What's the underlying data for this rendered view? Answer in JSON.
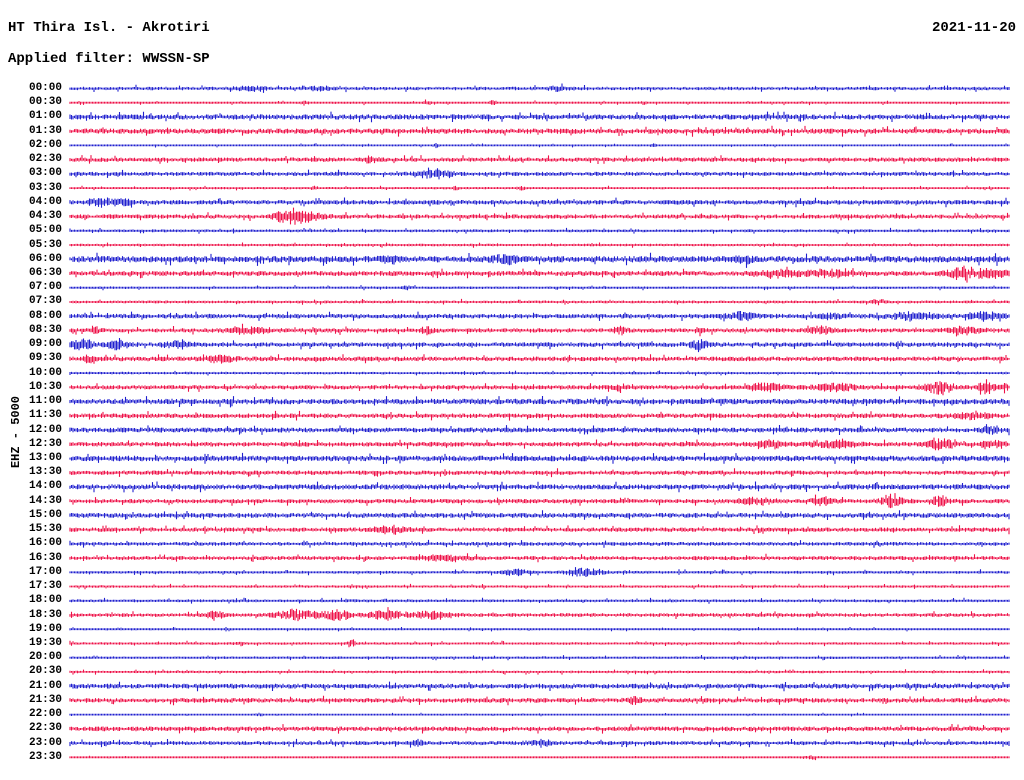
{
  "header": {
    "station_title": "HT Thira Isl. - Akrotiri",
    "date": "2021-11-20",
    "filter_line": "Applied filter: WWSSN-SP",
    "scale_label": "EHZ - 5000"
  },
  "colors": {
    "trace_blue": "#2020cf",
    "trace_red": "#ee1148",
    "text": "#000000",
    "background": "#ffffff"
  },
  "chart_data": {
    "type": "line",
    "subtype": "helicorder-daily-seismogram",
    "title": "HT Thira Isl. - Akrotiri",
    "date": "2021-11-20",
    "filter": "WWSSN-SP",
    "ylabel": "EHZ - 5000",
    "row_interval_minutes": 30,
    "x_range_minutes": [
      0,
      30
    ],
    "legend_position": "none",
    "grid": false,
    "color_rule": "rows starting on the hour are blue, half-hour rows are red",
    "events_format": "each event = [position_fraction_along_row, peak_half_amplitude_px, width_px]",
    "rows": [
      {
        "label": "00:00",
        "color": "blue",
        "noise": 1.2,
        "events": [
          [
            0.19,
            2.2,
            25
          ],
          [
            0.266,
            2.0,
            18
          ],
          [
            0.52,
            2.0,
            18
          ]
        ]
      },
      {
        "label": "00:30",
        "color": "red",
        "noise": 0.8,
        "events": [
          [
            0.25,
            2.0,
            6
          ],
          [
            0.38,
            2.0,
            6
          ],
          [
            0.45,
            2.0,
            6
          ],
          [
            0.61,
            2.0,
            6
          ]
        ]
      },
      {
        "label": "01:00",
        "color": "blue",
        "noise": 1.8,
        "events": []
      },
      {
        "label": "01:30",
        "color": "red",
        "noise": 1.8,
        "events": []
      },
      {
        "label": "02:00",
        "color": "blue",
        "noise": 0.7,
        "events": [
          [
            0.39,
            2.0,
            5
          ],
          [
            0.62,
            2.0,
            5
          ]
        ]
      },
      {
        "label": "02:30",
        "color": "red",
        "noise": 1.5,
        "events": [
          [
            0.319,
            2.5,
            15
          ]
        ]
      },
      {
        "label": "03:00",
        "color": "blue",
        "noise": 1.4,
        "events": [
          [
            0.388,
            5.0,
            26
          ]
        ]
      },
      {
        "label": "03:30",
        "color": "red",
        "noise": 0.8,
        "events": [
          [
            0.26,
            2.0,
            6
          ],
          [
            0.41,
            2.0,
            6
          ],
          [
            0.48,
            2.0,
            6
          ]
        ]
      },
      {
        "label": "04:00",
        "color": "blue",
        "noise": 1.6,
        "events": [
          [
            0.032,
            3.8,
            20
          ],
          [
            0.058,
            3.0,
            14
          ]
        ]
      },
      {
        "label": "04:30",
        "color": "red",
        "noise": 1.5,
        "events": [
          [
            0.234,
            8.0,
            22
          ],
          [
            0.255,
            3.5,
            26
          ]
        ]
      },
      {
        "label": "05:00",
        "color": "blue",
        "noise": 1.0,
        "events": []
      },
      {
        "label": "05:30",
        "color": "red",
        "noise": 0.9,
        "events": []
      },
      {
        "label": "06:00",
        "color": "blue",
        "noise": 2.2,
        "events": [
          [
            0.34,
            3.0,
            15
          ],
          [
            0.463,
            3.5,
            20
          ],
          [
            0.718,
            3.0,
            12
          ]
        ]
      },
      {
        "label": "06:30",
        "color": "red",
        "noise": 1.7,
        "events": [
          [
            0.755,
            3.5,
            28
          ],
          [
            0.808,
            3.0,
            36
          ],
          [
            0.952,
            7.0,
            24
          ],
          [
            0.984,
            4.5,
            26
          ]
        ]
      },
      {
        "label": "07:00",
        "color": "blue",
        "noise": 0.9,
        "events": [
          [
            0.36,
            2.5,
            8
          ]
        ]
      },
      {
        "label": "07:30",
        "color": "red",
        "noise": 1.0,
        "events": [
          [
            0.86,
            2.5,
            10
          ]
        ]
      },
      {
        "label": "08:00",
        "color": "blue",
        "noise": 1.6,
        "events": [
          [
            0.715,
            3.5,
            22
          ],
          [
            0.808,
            3.0,
            16
          ],
          [
            0.896,
            3.5,
            36
          ],
          [
            0.974,
            3.5,
            26
          ]
        ]
      },
      {
        "label": "08:30",
        "color": "red",
        "noise": 1.5,
        "events": [
          [
            0.027,
            3.0,
            9
          ],
          [
            0.19,
            3.5,
            32
          ],
          [
            0.38,
            3.0,
            11
          ],
          [
            0.585,
            3.0,
            11
          ],
          [
            0.67,
            3.0,
            9
          ],
          [
            0.8,
            4.5,
            18
          ],
          [
            0.95,
            3.5,
            28
          ]
        ]
      },
      {
        "label": "09:00",
        "color": "blue",
        "noise": 1.6,
        "events": [
          [
            0.012,
            5.5,
            18
          ],
          [
            0.05,
            5.0,
            16
          ],
          [
            0.115,
            4.0,
            20
          ],
          [
            0.67,
            4.0,
            15
          ]
        ]
      },
      {
        "label": "09:30",
        "color": "red",
        "noise": 1.6,
        "events": [
          [
            0.02,
            3.0,
            9
          ],
          [
            0.16,
            3.5,
            22
          ]
        ]
      },
      {
        "label": "10:00",
        "color": "blue",
        "noise": 0.9,
        "events": []
      },
      {
        "label": "10:30",
        "color": "red",
        "noise": 1.5,
        "events": [
          [
            0.585,
            3.0,
            11
          ],
          [
            0.74,
            4.0,
            26
          ],
          [
            0.815,
            3.5,
            36
          ],
          [
            0.925,
            6.5,
            22
          ],
          [
            0.975,
            5.5,
            12
          ],
          [
            0.995,
            4.0,
            9
          ]
        ]
      },
      {
        "label": "11:00",
        "color": "blue",
        "noise": 1.9,
        "events": []
      },
      {
        "label": "11:30",
        "color": "red",
        "noise": 1.6,
        "events": [
          [
            0.96,
            3.5,
            26
          ]
        ]
      },
      {
        "label": "12:00",
        "color": "blue",
        "noise": 1.7,
        "events": [
          [
            0.98,
            3.0,
            13
          ]
        ]
      },
      {
        "label": "12:30",
        "color": "red",
        "noise": 1.6,
        "events": [
          [
            0.745,
            4.0,
            22
          ],
          [
            0.81,
            3.5,
            36
          ],
          [
            0.925,
            6.5,
            20
          ],
          [
            0.975,
            3.5,
            10
          ],
          [
            0.99,
            3.5,
            10
          ]
        ]
      },
      {
        "label": "13:00",
        "color": "blue",
        "noise": 1.9,
        "events": []
      },
      {
        "label": "13:30",
        "color": "red",
        "noise": 1.5,
        "events": []
      },
      {
        "label": "14:00",
        "color": "blue",
        "noise": 1.8,
        "events": []
      },
      {
        "label": "14:30",
        "color": "red",
        "noise": 1.5,
        "events": [
          [
            0.73,
            3.5,
            26
          ],
          [
            0.8,
            3.5,
            22
          ],
          [
            0.875,
            6.0,
            18
          ],
          [
            0.925,
            5.0,
            14
          ]
        ]
      },
      {
        "label": "15:00",
        "color": "blue",
        "noise": 1.7,
        "events": []
      },
      {
        "label": "15:30",
        "color": "red",
        "noise": 1.5,
        "events": [
          [
            0.34,
            4.5,
            22
          ]
        ]
      },
      {
        "label": "16:00",
        "color": "blue",
        "noise": 1.3,
        "events": []
      },
      {
        "label": "16:30",
        "color": "red",
        "noise": 1.4,
        "events": [
          [
            0.4,
            3.0,
            36
          ]
        ]
      },
      {
        "label": "17:00",
        "color": "blue",
        "noise": 1.0,
        "events": [
          [
            0.475,
            3.0,
            26
          ],
          [
            0.545,
            4.5,
            30
          ]
        ]
      },
      {
        "label": "17:30",
        "color": "red",
        "noise": 0.9,
        "events": []
      },
      {
        "label": "18:00",
        "color": "blue",
        "noise": 1.0,
        "events": []
      },
      {
        "label": "18:30",
        "color": "red",
        "noise": 1.3,
        "events": [
          [
            0.155,
            4.5,
            14
          ],
          [
            0.24,
            5.5,
            34
          ],
          [
            0.285,
            5.0,
            22
          ],
          [
            0.335,
            4.5,
            26
          ],
          [
            0.385,
            3.5,
            34
          ]
        ]
      },
      {
        "label": "19:00",
        "color": "blue",
        "noise": 0.8,
        "events": []
      },
      {
        "label": "19:30",
        "color": "red",
        "noise": 0.9,
        "events": [
          [
            0.18,
            2.5,
            7
          ],
          [
            0.3,
            2.5,
            7
          ]
        ]
      },
      {
        "label": "20:00",
        "color": "blue",
        "noise": 0.9,
        "events": []
      },
      {
        "label": "20:30",
        "color": "red",
        "noise": 0.9,
        "events": []
      },
      {
        "label": "21:00",
        "color": "blue",
        "noise": 1.7,
        "events": []
      },
      {
        "label": "21:30",
        "color": "red",
        "noise": 1.6,
        "events": [
          [
            0.6,
            3.5,
            12
          ]
        ]
      },
      {
        "label": "22:00",
        "color": "blue",
        "noise": 0.6,
        "events": [
          [
            0.2,
            2.0,
            7
          ]
        ]
      },
      {
        "label": "22:30",
        "color": "red",
        "noise": 1.6,
        "events": []
      },
      {
        "label": "23:00",
        "color": "blue",
        "noise": 1.4,
        "events": [
          [
            0.37,
            2.5,
            10
          ],
          [
            0.5,
            3.0,
            20
          ]
        ]
      },
      {
        "label": "23:30",
        "color": "red",
        "noise": 0.5,
        "events": [
          [
            0.79,
            2.2,
            12
          ]
        ]
      }
    ]
  }
}
